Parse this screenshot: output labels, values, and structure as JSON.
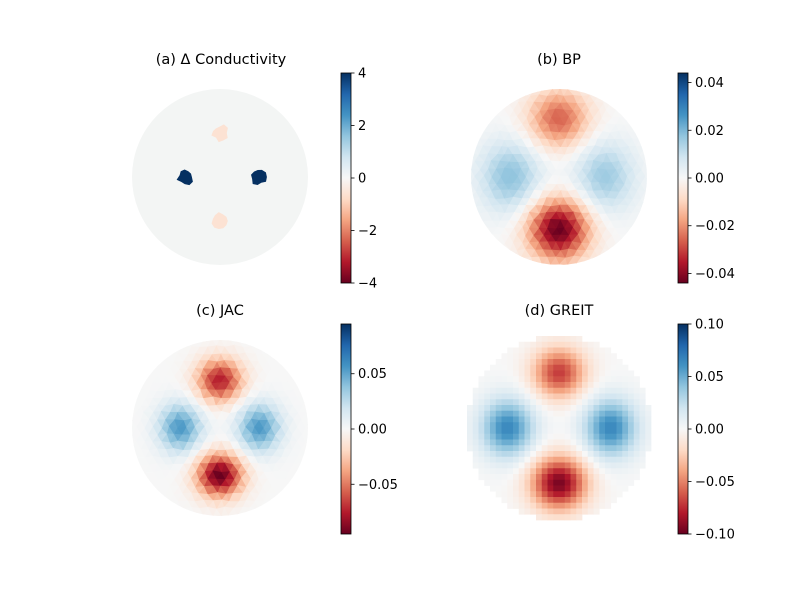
{
  "figure": {
    "background": "#ffffff"
  },
  "colormap": {
    "name": "RdBu",
    "stops": [
      "#67001f",
      "#b2182b",
      "#d6604d",
      "#f4a582",
      "#fddbc7",
      "#f7f7f7",
      "#d1e5f0",
      "#92c5de",
      "#4393c3",
      "#2166ac",
      "#053061"
    ]
  },
  "chart_data": [
    {
      "type": "heatmap",
      "title": "(a) Δ Conductivity",
      "rendering": "mesh",
      "background": "#f3f5f4",
      "clim": [
        -4,
        4
      ],
      "colorbar": {
        "ticks": [
          4,
          2,
          0,
          -2,
          -4
        ],
        "tick_labels": [
          "4",
          "2",
          "0",
          "−2",
          "−4"
        ]
      },
      "regions": [
        {
          "label": "top inclusion",
          "center": [
            0,
            0.5
          ],
          "radius": 0.09,
          "value": -0.6
        },
        {
          "label": "bottom inclusion",
          "center": [
            0,
            -0.5
          ],
          "radius": 0.09,
          "value": -0.6
        },
        {
          "label": "left inclusion",
          "center": [
            -0.39,
            0
          ],
          "radius": 0.09,
          "value": 4
        },
        {
          "label": "right inclusion",
          "center": [
            0.44,
            0
          ],
          "radius": 0.09,
          "value": 4
        }
      ]
    },
    {
      "type": "heatmap",
      "title": "(b) BP",
      "rendering": "mesh",
      "clim": [
        -0.044,
        0.044
      ],
      "colorbar": {
        "ticks": [
          0.04,
          0.02,
          0,
          -0.02,
          -0.04
        ],
        "tick_labels": [
          "0.04",
          "0.02",
          "0.00",
          "−0.02",
          "−0.04"
        ]
      },
      "blobs": [
        {
          "center": [
            0,
            0.66
          ],
          "sx": 0.24,
          "sy": 0.23,
          "value": -0.026
        },
        {
          "center": [
            0,
            -0.6
          ],
          "sx": 0.24,
          "sy": 0.24,
          "value": -0.044
        },
        {
          "center": [
            -0.55,
            0
          ],
          "sx": 0.24,
          "sy": 0.28,
          "value": 0.018
        },
        {
          "center": [
            0.52,
            0
          ],
          "sx": 0.24,
          "sy": 0.28,
          "value": 0.016
        }
      ]
    },
    {
      "type": "heatmap",
      "title": "(c) JAC",
      "rendering": "mesh",
      "clim": [
        -0.095,
        0.095
      ],
      "colorbar": {
        "ticks": [
          0.05,
          0,
          -0.05
        ],
        "tick_labels": [
          "0.05",
          "0.00",
          "−0.05"
        ]
      },
      "blobs": [
        {
          "center": [
            0,
            0.54
          ],
          "sx": 0.18,
          "sy": 0.17,
          "value": -0.075
        },
        {
          "center": [
            0,
            -0.54
          ],
          "sx": 0.18,
          "sy": 0.17,
          "value": -0.095
        },
        {
          "center": [
            -0.45,
            0
          ],
          "sx": 0.17,
          "sy": 0.19,
          "value": 0.055
        },
        {
          "center": [
            0.45,
            0
          ],
          "sx": 0.17,
          "sy": 0.19,
          "value": 0.055
        }
      ]
    },
    {
      "type": "heatmap",
      "title": "(d) GREIT",
      "rendering": "pixel",
      "grid": 32,
      "clim": [
        -0.1,
        0.1
      ],
      "colorbar": {
        "ticks": [
          0.1,
          0.05,
          0,
          -0.05,
          -0.1
        ],
        "tick_labels": [
          "0.10",
          "0.05",
          "0.00",
          "−0.05",
          "−0.10"
        ]
      },
      "blobs": [
        {
          "center": [
            0,
            0.6
          ],
          "sx": 0.2,
          "sy": 0.19,
          "value": -0.07
        },
        {
          "center": [
            0,
            -0.6
          ],
          "sx": 0.21,
          "sy": 0.2,
          "value": -0.095
        },
        {
          "center": [
            -0.56,
            0
          ],
          "sx": 0.2,
          "sy": 0.22,
          "value": 0.065
        },
        {
          "center": [
            0.56,
            0
          ],
          "sx": 0.2,
          "sy": 0.22,
          "value": 0.065
        }
      ]
    }
  ]
}
